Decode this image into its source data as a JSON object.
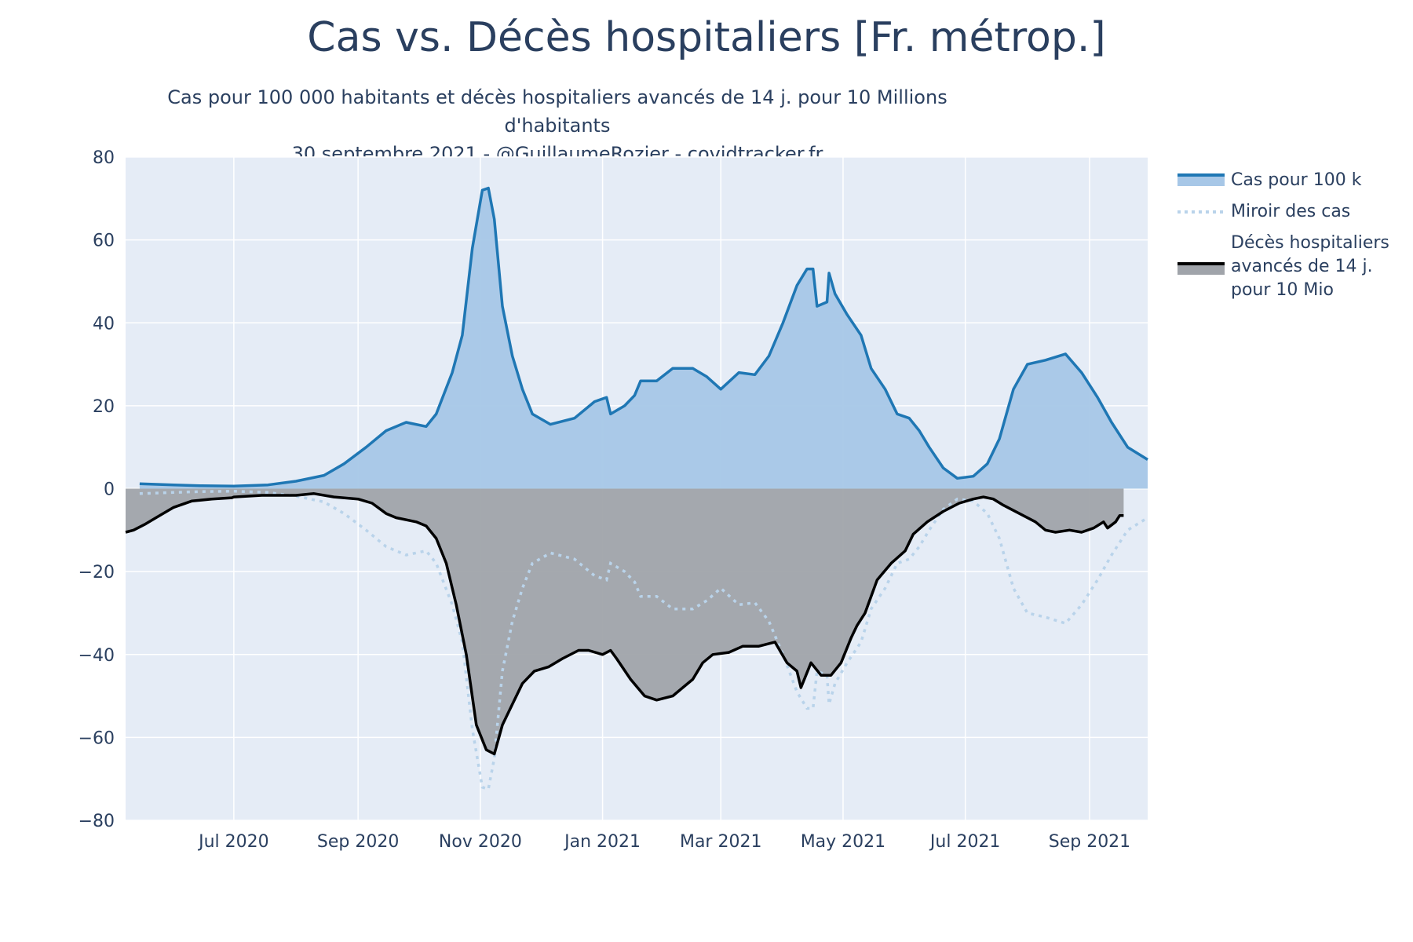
{
  "title": "Cas vs. Décès hospitaliers [Fr. métrop.]",
  "subtitle_line1": "Cas pour 100 000 habitants et décès hospitaliers avancés de 14 j. pour 10 Millions d'habitants",
  "subtitle_line2": "30 septembre 2021 - @GuillaumeRozier - covidtracker.fr",
  "colors": {
    "plot_bg": "#e5ecf6",
    "grid": "#ffffff",
    "cases_line": "#1f77b4",
    "cases_fill": "#a7c7e7",
    "mirror_line": "#b9d3ea",
    "deaths_line": "#000000",
    "deaths_fill": "#a0a4aa"
  },
  "chart_data": {
    "type": "area",
    "ylim": [
      -80,
      80
    ],
    "yticks": [
      80,
      60,
      40,
      20,
      0,
      -20,
      -40,
      -60,
      -80
    ],
    "ytick_labels": [
      "80",
      "60",
      "40",
      "20",
      "0",
      "−20",
      "−40",
      "−60",
      "−80"
    ],
    "xlim": [
      "2020-05-08",
      "2021-09-30"
    ],
    "xticks": [
      {
        "date": "2020-07-01",
        "label": "Jul 2020"
      },
      {
        "date": "2020-09-01",
        "label": "Sep 2020"
      },
      {
        "date": "2020-11-01",
        "label": "Nov 2020"
      },
      {
        "date": "2021-01-01",
        "label": "Jan 2021"
      },
      {
        "date": "2021-03-01",
        "label": "Mar 2021"
      },
      {
        "date": "2021-05-01",
        "label": "May 2021"
      },
      {
        "date": "2021-07-01",
        "label": "Jul 2021"
      },
      {
        "date": "2021-09-01",
        "label": "Sep 2021"
      }
    ],
    "legend_position": "top-right",
    "series": [
      {
        "name": "Cas pour 100 k",
        "style": "line+fill",
        "points": [
          [
            "2020-05-15",
            1.2
          ],
          [
            "2020-06-01",
            0.9
          ],
          [
            "2020-06-15",
            0.7
          ],
          [
            "2020-07-01",
            0.6
          ],
          [
            "2020-07-18",
            0.9
          ],
          [
            "2020-08-01",
            1.8
          ],
          [
            "2020-08-15",
            3.2
          ],
          [
            "2020-08-25",
            6.0
          ],
          [
            "2020-09-05",
            10.0
          ],
          [
            "2020-09-15",
            14.0
          ],
          [
            "2020-09-25",
            16.0
          ],
          [
            "2020-10-05",
            15.0
          ],
          [
            "2020-10-10",
            18.0
          ],
          [
            "2020-10-18",
            28.0
          ],
          [
            "2020-10-23",
            37.0
          ],
          [
            "2020-10-28",
            58.0
          ],
          [
            "2020-11-02",
            72.0
          ],
          [
            "2020-11-05",
            72.5
          ],
          [
            "2020-11-08",
            65.0
          ],
          [
            "2020-11-12",
            44.0
          ],
          [
            "2020-11-17",
            32.0
          ],
          [
            "2020-11-22",
            24.0
          ],
          [
            "2020-11-27",
            18.0
          ],
          [
            "2020-12-06",
            15.5
          ],
          [
            "2020-12-18",
            17.0
          ],
          [
            "2020-12-28",
            21.0
          ],
          [
            "2021-01-03",
            22.0
          ],
          [
            "2021-01-05",
            18.0
          ],
          [
            "2021-01-12",
            20.0
          ],
          [
            "2021-01-17",
            22.5
          ],
          [
            "2021-01-20",
            26.0
          ],
          [
            "2021-01-28",
            26.0
          ],
          [
            "2021-02-05",
            29.0
          ],
          [
            "2021-02-15",
            29.0
          ],
          [
            "2021-02-22",
            27.0
          ],
          [
            "2021-03-01",
            24.0
          ],
          [
            "2021-03-10",
            28.0
          ],
          [
            "2021-03-18",
            27.5
          ],
          [
            "2021-03-25",
            32.0
          ],
          [
            "2021-04-01",
            40.0
          ],
          [
            "2021-04-08",
            49.0
          ],
          [
            "2021-04-13",
            53.0
          ],
          [
            "2021-04-16",
            53.0
          ],
          [
            "2021-04-18",
            44.0
          ],
          [
            "2021-04-23",
            45.0
          ],
          [
            "2021-04-24",
            52.0
          ],
          [
            "2021-04-27",
            47.0
          ],
          [
            "2021-05-03",
            42.0
          ],
          [
            "2021-05-10",
            37.0
          ],
          [
            "2021-05-15",
            29.0
          ],
          [
            "2021-05-22",
            24.0
          ],
          [
            "2021-05-28",
            18.0
          ],
          [
            "2021-06-03",
            17.0
          ],
          [
            "2021-06-08",
            14.0
          ],
          [
            "2021-06-13",
            10.0
          ],
          [
            "2021-06-20",
            5.0
          ],
          [
            "2021-06-27",
            2.5
          ],
          [
            "2021-07-05",
            3.0
          ],
          [
            "2021-07-12",
            6.0
          ],
          [
            "2021-07-18",
            12.0
          ],
          [
            "2021-07-25",
            24.0
          ],
          [
            "2021-08-01",
            30.0
          ],
          [
            "2021-08-10",
            31.0
          ],
          [
            "2021-08-20",
            32.5
          ],
          [
            "2021-08-28",
            28.0
          ],
          [
            "2021-09-05",
            22.0
          ],
          [
            "2021-09-12",
            16.0
          ],
          [
            "2021-09-20",
            10.0
          ],
          [
            "2021-09-30",
            7.0
          ]
        ]
      },
      {
        "name": "Miroir des cas",
        "style": "dotted",
        "points": [
          [
            "2020-05-15",
            -1.2
          ],
          [
            "2020-06-01",
            -0.9
          ],
          [
            "2020-06-15",
            -0.7
          ],
          [
            "2020-07-01",
            -0.6
          ],
          [
            "2020-07-18",
            -0.9
          ],
          [
            "2020-08-01",
            -1.8
          ],
          [
            "2020-08-15",
            -3.2
          ],
          [
            "2020-08-25",
            -6.0
          ],
          [
            "2020-09-05",
            -10.0
          ],
          [
            "2020-09-15",
            -14.0
          ],
          [
            "2020-09-25",
            -16.0
          ],
          [
            "2020-10-05",
            -15.0
          ],
          [
            "2020-10-10",
            -18.0
          ],
          [
            "2020-10-18",
            -28.0
          ],
          [
            "2020-10-23",
            -37.0
          ],
          [
            "2020-10-28",
            -58.0
          ],
          [
            "2020-11-02",
            -72.0
          ],
          [
            "2020-11-05",
            -72.5
          ],
          [
            "2020-11-08",
            -65.0
          ],
          [
            "2020-11-12",
            -44.0
          ],
          [
            "2020-11-17",
            -32.0
          ],
          [
            "2020-11-22",
            -24.0
          ],
          [
            "2020-11-27",
            -18.0
          ],
          [
            "2020-12-06",
            -15.5
          ],
          [
            "2020-12-18",
            -17.0
          ],
          [
            "2020-12-28",
            -21.0
          ],
          [
            "2021-01-03",
            -22.0
          ],
          [
            "2021-01-05",
            -18.0
          ],
          [
            "2021-01-12",
            -20.0
          ],
          [
            "2021-01-17",
            -22.5
          ],
          [
            "2021-01-20",
            -26.0
          ],
          [
            "2021-01-28",
            -26.0
          ],
          [
            "2021-02-05",
            -29.0
          ],
          [
            "2021-02-15",
            -29.0
          ],
          [
            "2021-02-22",
            -27.0
          ],
          [
            "2021-03-01",
            -24.0
          ],
          [
            "2021-03-10",
            -28.0
          ],
          [
            "2021-03-18",
            -27.5
          ],
          [
            "2021-03-25",
            -32.0
          ],
          [
            "2021-04-01",
            -40.0
          ],
          [
            "2021-04-08",
            -49.0
          ],
          [
            "2021-04-13",
            -53.0
          ],
          [
            "2021-04-16",
            -53.0
          ],
          [
            "2021-04-18",
            -44.0
          ],
          [
            "2021-04-23",
            -45.0
          ],
          [
            "2021-04-24",
            -52.0
          ],
          [
            "2021-04-27",
            -47.0
          ],
          [
            "2021-05-03",
            -42.0
          ],
          [
            "2021-05-10",
            -37.0
          ],
          [
            "2021-05-15",
            -29.0
          ],
          [
            "2021-05-22",
            -24.0
          ],
          [
            "2021-05-28",
            -18.0
          ],
          [
            "2021-06-03",
            -17.0
          ],
          [
            "2021-06-08",
            -14.0
          ],
          [
            "2021-06-13",
            -10.0
          ],
          [
            "2021-06-20",
            -5.0
          ],
          [
            "2021-06-27",
            -2.5
          ],
          [
            "2021-07-05",
            -3.0
          ],
          [
            "2021-07-12",
            -6.0
          ],
          [
            "2021-07-18",
            -12.0
          ],
          [
            "2021-07-25",
            -24.0
          ],
          [
            "2021-08-01",
            -30.0
          ],
          [
            "2021-08-10",
            -31.0
          ],
          [
            "2021-08-20",
            -32.5
          ],
          [
            "2021-08-28",
            -28.0
          ],
          [
            "2021-09-05",
            -22.0
          ],
          [
            "2021-09-12",
            -16.0
          ],
          [
            "2021-09-20",
            -10.0
          ],
          [
            "2021-09-30",
            -7.0
          ]
        ]
      },
      {
        "name": "Décès hospitaliers avancés de 14 j. pour 10 Mio",
        "style": "line+fill",
        "points": [
          [
            "2020-05-08",
            -10.5
          ],
          [
            "2020-05-12",
            -10.0
          ],
          [
            "2020-05-18",
            -8.5
          ],
          [
            "2020-05-25",
            -6.5
          ],
          [
            "2020-06-01",
            -4.5
          ],
          [
            "2020-06-10",
            -3.0
          ],
          [
            "2020-06-20",
            -2.5
          ],
          [
            "2020-06-30",
            -2.2
          ],
          [
            "2020-07-01",
            -2.0
          ],
          [
            "2020-07-15",
            -1.6
          ],
          [
            "2020-08-01",
            -1.6
          ],
          [
            "2020-08-10",
            -1.2
          ],
          [
            "2020-08-20",
            -2.0
          ],
          [
            "2020-09-01",
            -2.5
          ],
          [
            "2020-09-08",
            -3.5
          ],
          [
            "2020-09-15",
            -6.0
          ],
          [
            "2020-09-20",
            -7.0
          ],
          [
            "2020-09-30",
            -8.0
          ],
          [
            "2020-10-05",
            -9.0
          ],
          [
            "2020-10-10",
            -12.0
          ],
          [
            "2020-10-15",
            -18.0
          ],
          [
            "2020-10-20",
            -28.0
          ],
          [
            "2020-10-25",
            -40.0
          ],
          [
            "2020-10-30",
            -57.0
          ],
          [
            "2020-11-04",
            -63.0
          ],
          [
            "2020-11-08",
            -64.0
          ],
          [
            "2020-11-12",
            -57.0
          ],
          [
            "2020-11-17",
            -52.0
          ],
          [
            "2020-11-22",
            -47.0
          ],
          [
            "2020-11-28",
            -44.0
          ],
          [
            "2020-12-05",
            -43.0
          ],
          [
            "2020-12-12",
            -41.0
          ],
          [
            "2020-12-20",
            -39.0
          ],
          [
            "2020-12-25",
            -39.0
          ],
          [
            "2021-01-01",
            -40.0
          ],
          [
            "2021-01-05",
            -39.0
          ],
          [
            "2021-01-08",
            -41.0
          ],
          [
            "2021-01-15",
            -46.0
          ],
          [
            "2021-01-22",
            -50.0
          ],
          [
            "2021-01-28",
            -51.0
          ],
          [
            "2021-02-05",
            -50.0
          ],
          [
            "2021-02-10",
            -48.0
          ],
          [
            "2021-02-15",
            -46.0
          ],
          [
            "2021-02-20",
            -42.0
          ],
          [
            "2021-02-25",
            -40.0
          ],
          [
            "2021-03-05",
            -39.5
          ],
          [
            "2021-03-12",
            -38.0
          ],
          [
            "2021-03-20",
            -38.0
          ],
          [
            "2021-03-28",
            -37.0
          ],
          [
            "2021-04-03",
            -42.0
          ],
          [
            "2021-04-08",
            -44.0
          ],
          [
            "2021-04-10",
            -48.0
          ],
          [
            "2021-04-15",
            -42.0
          ],
          [
            "2021-04-20",
            -45.0
          ],
          [
            "2021-04-25",
            -45.0
          ],
          [
            "2021-04-30",
            -42.0
          ],
          [
            "2021-05-05",
            -36.0
          ],
          [
            "2021-05-08",
            -33.0
          ],
          [
            "2021-05-12",
            -30.0
          ],
          [
            "2021-05-18",
            -22.0
          ],
          [
            "2021-05-25",
            -18.0
          ],
          [
            "2021-06-01",
            -15.0
          ],
          [
            "2021-06-05",
            -11.0
          ],
          [
            "2021-06-12",
            -8.0
          ],
          [
            "2021-06-20",
            -5.5
          ],
          [
            "2021-06-28",
            -3.5
          ],
          [
            "2021-07-05",
            -2.5
          ],
          [
            "2021-07-10",
            -2.0
          ],
          [
            "2021-07-15",
            -2.5
          ],
          [
            "2021-07-20",
            -4.0
          ],
          [
            "2021-07-28",
            -6.0
          ],
          [
            "2021-08-05",
            -8.0
          ],
          [
            "2021-08-10",
            -10.0
          ],
          [
            "2021-08-15",
            -10.5
          ],
          [
            "2021-08-22",
            -10.0
          ],
          [
            "2021-08-28",
            -10.5
          ],
          [
            "2021-09-03",
            -9.5
          ],
          [
            "2021-09-08",
            -8.0
          ],
          [
            "2021-09-10",
            -9.5
          ],
          [
            "2021-09-14",
            -8.0
          ],
          [
            "2021-09-16",
            -6.5
          ],
          [
            "2021-09-18",
            -6.5
          ]
        ]
      }
    ]
  },
  "legend": {
    "items": [
      {
        "name": "cases",
        "label": "Cas pour 100 k"
      },
      {
        "name": "mirror",
        "label": "Miroir des cas"
      },
      {
        "name": "deaths",
        "label": "Décès hospitaliers avancés de 14 j. pour 10 Mio"
      }
    ]
  }
}
